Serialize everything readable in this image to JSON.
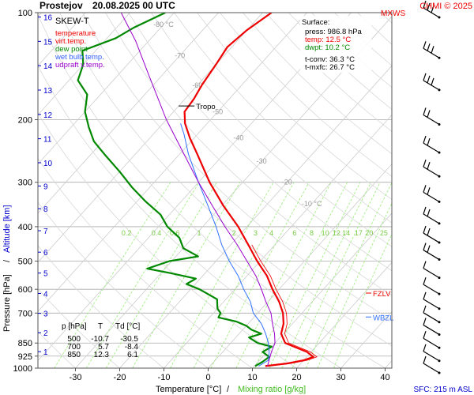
{
  "header": {
    "station": "Prostejov",
    "datetime": "20.08.2025 00 UTC",
    "copyright": "CHMI © 2025",
    "mxws": "MXWS"
  },
  "legend": {
    "title": "SKEW-T",
    "items": [
      {
        "label": "temperature",
        "color": "#ff0000"
      },
      {
        "label": "virt.temp.",
        "color": "#ff0000"
      },
      {
        "label": "dew point",
        "color": "#00aa00"
      },
      {
        "label": "wet bulb temp.",
        "color": "#3060ff"
      },
      {
        "label": "udpraft v.temp.",
        "color": "#9900cc"
      }
    ]
  },
  "surface": {
    "title": "Surface:",
    "press": "press: 986.8 hPa",
    "temp": "temp: 12.5 °C",
    "dwpt": "dwpt: 10.2 °C",
    "tconv": "t-conv: 36.3 °C",
    "tmxfc": "t-mxfc: 26.7 °C"
  },
  "table": {
    "headers": [
      "p [hPa]",
      "T",
      "Td [°C]"
    ],
    "rows": [
      [
        "500",
        "-10.7",
        "-30.5"
      ],
      [
        "700",
        "5.7",
        "-8.4"
      ],
      [
        "850",
        "12.3",
        "6.1"
      ]
    ]
  },
  "labels": {
    "tropo": "Tropo",
    "fzlv": "FZLV",
    "wbzl": "WBZL",
    "sfc": "SFC: 215 m ASL",
    "xaxis_temp": "Temperature [°C]",
    "xaxis_sep": "/",
    "xaxis_mix": "Mixing ratio [g/kg]",
    "yaxis_press": "Pressure [hPa]",
    "yaxis_sep": "/",
    "yaxis_alt": "Altitude [km]"
  },
  "colors": {
    "temperature": "#ee0000",
    "dewpoint": "#008800",
    "wetbulb": "#3070ff",
    "parcel": "#9900cc",
    "mixing": "#99ee77",
    "grid": "#aaaaaa",
    "altitude": "#0000cc",
    "frame": "#555555"
  },
  "chart_data": {
    "type": "skew-t",
    "title": "Prostejov 20.08.2025 00 UTC",
    "xlabel": "Temperature [°C] / Mixing ratio [g/kg]",
    "ylabel": "Pressure [hPa] / Altitude [km]",
    "xlim": [
      -38,
      42
    ],
    "ylim": [
      1000,
      100
    ],
    "x_ticks": [
      -30,
      -20,
      -10,
      0,
      10,
      20,
      30,
      40
    ],
    "pressure_ticks": [
      100,
      200,
      300,
      400,
      500,
      600,
      700,
      850,
      925,
      1000
    ],
    "altitude_ticks": [
      1,
      2,
      3,
      4,
      5,
      6,
      7,
      8,
      9,
      10,
      11,
      12,
      13,
      14,
      15,
      16
    ],
    "isotherm_labels": [
      {
        "t": -80,
        "p": 108,
        "label": "-80 °C"
      },
      {
        "t": -70,
        "p": 132,
        "label": "-70"
      },
      {
        "t": -60,
        "p": 160,
        "label": "-60"
      },
      {
        "t": -50,
        "p": 190,
        "label": "-50"
      },
      {
        "t": -40,
        "p": 225,
        "label": "-40"
      },
      {
        "t": -30,
        "p": 262,
        "label": "-30"
      },
      {
        "t": -20,
        "p": 300,
        "label": "-20"
      },
      {
        "t": -10,
        "p": 345,
        "label": "-10 °C"
      }
    ],
    "mixing_ratio_labels": [
      "0.2",
      "0.4",
      "0.6",
      "1",
      "2",
      "3",
      "4",
      "6",
      "8",
      "10",
      "12",
      "14",
      "17",
      "20",
      "25"
    ],
    "series": [
      {
        "name": "temperature",
        "points": [
          [
            986.8,
            12.5
          ],
          [
            970,
            17
          ],
          [
            950,
            20
          ],
          [
            930,
            21.5
          ],
          [
            900,
            19
          ],
          [
            850,
            12.3
          ],
          [
            800,
            9.5
          ],
          [
            750,
            8
          ],
          [
            700,
            5.7
          ],
          [
            650,
            2.5
          ],
          [
            600,
            -1.5
          ],
          [
            550,
            -5.5
          ],
          [
            500,
            -10.7
          ],
          [
            450,
            -16
          ],
          [
            400,
            -22
          ],
          [
            350,
            -29.5
          ],
          [
            300,
            -37.5
          ],
          [
            250,
            -46
          ],
          [
            225,
            -51
          ],
          [
            205,
            -55
          ],
          [
            190,
            -57.5
          ],
          [
            175,
            -58
          ],
          [
            160,
            -59
          ],
          [
            140,
            -60
          ],
          [
            125,
            -61
          ],
          [
            112,
            -60
          ],
          [
            100,
            -58
          ]
        ]
      },
      {
        "name": "dew point",
        "points": [
          [
            986.8,
            10.2
          ],
          [
            960,
            11
          ],
          [
            930,
            11.5
          ],
          [
            900,
            9
          ],
          [
            870,
            10
          ],
          [
            850,
            6.1
          ],
          [
            820,
            3
          ],
          [
            800,
            5
          ],
          [
            780,
            2
          ],
          [
            760,
            0
          ],
          [
            740,
            -3
          ],
          [
            720,
            -8
          ],
          [
            700,
            -8.4
          ],
          [
            680,
            -10
          ],
          [
            660,
            -11
          ],
          [
            640,
            -12
          ],
          [
            600,
            -18
          ],
          [
            580,
            -22
          ],
          [
            560,
            -21
          ],
          [
            540,
            -28
          ],
          [
            525,
            -34
          ],
          [
            500,
            -30.5
          ],
          [
            485,
            -25
          ],
          [
            460,
            -30
          ],
          [
            430,
            -33
          ],
          [
            400,
            -38
          ],
          [
            370,
            -42
          ],
          [
            340,
            -48
          ],
          [
            310,
            -54
          ],
          [
            280,
            -60
          ],
          [
            250,
            -67
          ],
          [
            230,
            -72
          ],
          [
            210,
            -76
          ],
          [
            190,
            -80
          ],
          [
            170,
            -83
          ],
          [
            155,
            -88
          ],
          [
            140,
            -90
          ],
          [
            128,
            -93
          ],
          [
            118,
            -88
          ],
          [
            110,
            -86
          ],
          [
            100,
            -82
          ]
        ]
      },
      {
        "name": "wet bulb temp.",
        "points": [
          [
            986.8,
            11
          ],
          [
            950,
            12
          ],
          [
            900,
            10.5
          ],
          [
            850,
            8.5
          ],
          [
            800,
            6
          ],
          [
            750,
            3
          ],
          [
            700,
            -1
          ],
          [
            650,
            -4
          ],
          [
            600,
            -8
          ],
          [
            550,
            -12
          ],
          [
            500,
            -17
          ],
          [
            450,
            -22
          ],
          [
            400,
            -27
          ],
          [
            350,
            -33
          ],
          [
            300,
            -40
          ],
          [
            250,
            -48
          ],
          [
            220,
            -53
          ],
          [
            205,
            -56
          ]
        ]
      },
      {
        "name": "udpraft v.temp.",
        "points": [
          [
            986.8,
            13
          ],
          [
            900,
            11
          ],
          [
            850,
            10
          ],
          [
            800,
            8
          ],
          [
            750,
            5.5
          ],
          [
            700,
            3
          ],
          [
            650,
            -0.5
          ],
          [
            600,
            -4
          ],
          [
            550,
            -8
          ],
          [
            500,
            -13
          ],
          [
            450,
            -18.5
          ],
          [
            400,
            -25
          ],
          [
            350,
            -32
          ],
          [
            300,
            -40
          ],
          [
            250,
            -49
          ],
          [
            200,
            -60
          ],
          [
            150,
            -73
          ],
          [
            120,
            -83
          ],
          [
            100,
            -92
          ]
        ]
      }
    ],
    "markers": [
      {
        "name": "Tropo",
        "p": 183
      },
      {
        "name": "FZLV",
        "p": 615
      },
      {
        "name": "WBZL",
        "p": 718
      }
    ],
    "wind_barbs_hpa": [
      100,
      130,
      160,
      200,
      240,
      280,
      330,
      380,
      430,
      480,
      540,
      600,
      660,
      720,
      780,
      850,
      925,
      1000
    ]
  }
}
